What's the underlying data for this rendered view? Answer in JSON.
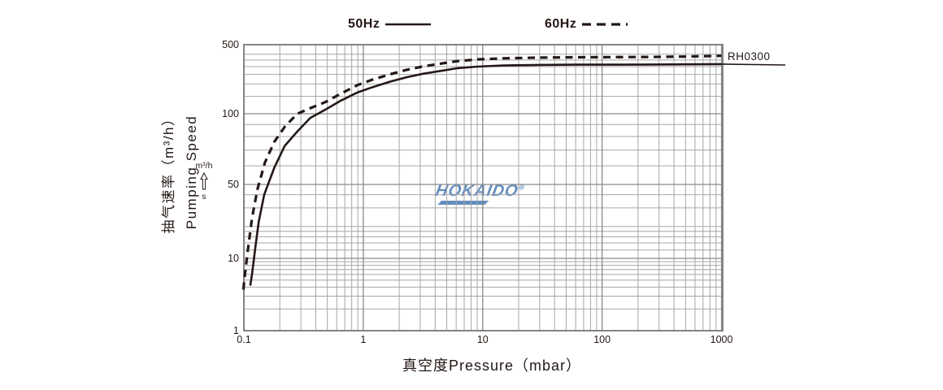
{
  "legend": {
    "items": [
      {
        "label": "50Hz",
        "line_style": "solid"
      },
      {
        "label": "60Hz",
        "line_style": "dashed"
      }
    ]
  },
  "y_axis_title": {
    "zh": "抽气速率（m³/h）",
    "en": "Pumping Speed"
  },
  "unit_note": {
    "numerator": "m³/h",
    "denominator": "s"
  },
  "x_axis_title": "真空度Pressure（mbar）",
  "watermark": {
    "text": "HOKAIDO",
    "reg": "®"
  },
  "curve_label": "RH0300",
  "colors": {
    "curve": "#231815",
    "text": "#231815",
    "grid_minor": "#a6a6a6",
    "grid_major": "#8a8a8a",
    "border": "#7a7a7a",
    "watermark": "#5b87bb"
  },
  "chart_data": {
    "type": "line",
    "title": "",
    "xlabel": "真空度Pressure（mbar）",
    "ylabel": "抽气速率（m³/h）Pumping Speed",
    "x_scale": "log",
    "xlim": [
      0.1,
      1023
    ],
    "x_ticks": [
      {
        "value": 0.1,
        "label": "0.1"
      },
      {
        "value": 1,
        "label": "1"
      },
      {
        "value": 10,
        "label": "10"
      },
      {
        "value": 100,
        "label": "100"
      },
      {
        "value": 1000,
        "label": "1000"
      }
    ],
    "x_minor_gridlines": [
      0.2,
      0.3,
      0.4,
      0.5,
      0.6,
      0.7,
      0.8,
      0.9,
      2,
      3,
      4,
      5,
      6,
      7,
      8,
      9,
      20,
      30,
      40,
      50,
      60,
      70,
      80,
      90,
      200,
      300,
      400,
      500,
      600,
      700,
      800,
      900
    ],
    "y_scale": "segmented-log",
    "y_anchors": [
      [
        1,
        1.0
      ],
      [
        10,
        0.7472
      ],
      [
        50,
        0.4886
      ],
      [
        100,
        0.2415
      ],
      [
        500,
        0.0
      ]
    ],
    "ylim": [
      1,
      500
    ],
    "y_ticks": [
      {
        "value": 500,
        "label": "500"
      },
      {
        "value": 100,
        "label": "100"
      },
      {
        "value": 50,
        "label": "50"
      },
      {
        "value": 10,
        "label": "10"
      },
      {
        "value": 1,
        "label": "1"
      }
    ],
    "y_minor_gridlines": [
      400,
      350,
      300,
      250,
      200,
      150,
      90,
      80,
      70,
      60,
      40,
      30,
      20,
      18,
      16,
      14,
      12,
      9,
      8,
      7,
      6,
      5,
      4,
      3,
      2
    ],
    "grid": true,
    "legend_position": "top",
    "annotation": "RH0300",
    "series": [
      {
        "name": "50Hz",
        "style": "solid",
        "points": [
          [
            0.113,
            4.2
          ],
          [
            0.117,
            6
          ],
          [
            0.124,
            12
          ],
          [
            0.133,
            22
          ],
          [
            0.148,
            40
          ],
          [
            0.18,
            59
          ],
          [
            0.22,
            73
          ],
          [
            0.28,
            84
          ],
          [
            0.36,
            96
          ],
          [
            0.48,
            110
          ],
          [
            0.65,
            136
          ],
          [
            0.9,
            165
          ],
          [
            1.2,
            186
          ],
          [
            1.7,
            212
          ],
          [
            2.3,
            234
          ],
          [
            3.2,
            255
          ],
          [
            4.5,
            272
          ],
          [
            6,
            288
          ],
          [
            9,
            300
          ],
          [
            15,
            308
          ],
          [
            30,
            312
          ],
          [
            60,
            314
          ],
          [
            120,
            314
          ],
          [
            250,
            315
          ],
          [
            500,
            316
          ],
          [
            1000,
            318
          ]
        ]
      },
      {
        "name": "60Hz",
        "style": "dashed",
        "points": [
          [
            0.099,
            3.7
          ],
          [
            0.102,
            6
          ],
          [
            0.108,
            12
          ],
          [
            0.117,
            24
          ],
          [
            0.13,
            45
          ],
          [
            0.15,
            62
          ],
          [
            0.18,
            76
          ],
          [
            0.22,
            88
          ],
          [
            0.28,
            100
          ],
          [
            0.36,
            114
          ],
          [
            0.48,
            131
          ],
          [
            0.65,
            160
          ],
          [
            0.9,
            196
          ],
          [
            1.2,
            222
          ],
          [
            1.7,
            252
          ],
          [
            2.3,
            278
          ],
          [
            3.2,
            302
          ],
          [
            4.5,
            322
          ],
          [
            6,
            340
          ],
          [
            9,
            355
          ],
          [
            15,
            364
          ],
          [
            30,
            370
          ],
          [
            60,
            373
          ],
          [
            120,
            374
          ],
          [
            250,
            376
          ],
          [
            500,
            379
          ],
          [
            1000,
            386
          ]
        ]
      }
    ]
  }
}
